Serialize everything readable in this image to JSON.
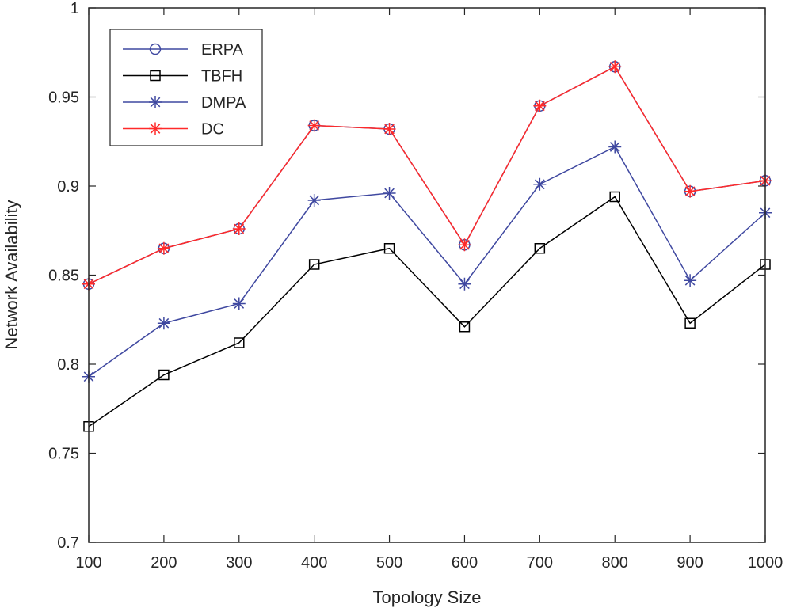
{
  "chart_data": {
    "type": "line",
    "title": "",
    "xlabel": "Topology Size",
    "ylabel": "Network Availability",
    "x": [
      100,
      200,
      300,
      400,
      500,
      600,
      700,
      800,
      900,
      1000
    ],
    "xlim": [
      100,
      1000
    ],
    "ylim": [
      0.7,
      1.0
    ],
    "xticks": [
      "100",
      "200",
      "300",
      "400",
      "500",
      "600",
      "700",
      "800",
      "900",
      "1000"
    ],
    "yticks": [
      "0.7",
      "0.75",
      "0.8",
      "0.85",
      "0.9",
      "0.95",
      "1"
    ],
    "grid": false,
    "legend_position": "top-left",
    "series": [
      {
        "name": "ERPA",
        "color": "#3f48a0",
        "marker": "circle",
        "values": [
          0.845,
          0.865,
          0.876,
          0.934,
          0.932,
          0.867,
          0.945,
          0.967,
          0.897,
          0.903
        ]
      },
      {
        "name": "TBFH",
        "color": "#000000",
        "marker": "square",
        "values": [
          0.765,
          0.794,
          0.812,
          0.856,
          0.865,
          0.821,
          0.865,
          0.894,
          0.823,
          0.856
        ]
      },
      {
        "name": "DMPA",
        "color": "#3f48a0",
        "marker": "asterisk",
        "values": [
          0.793,
          0.823,
          0.834,
          0.892,
          0.896,
          0.845,
          0.901,
          0.922,
          0.847,
          0.885
        ]
      },
      {
        "name": "DC",
        "color": "#ff2a2a",
        "marker": "asterisk",
        "values": [
          0.845,
          0.865,
          0.876,
          0.934,
          0.932,
          0.867,
          0.945,
          0.967,
          0.897,
          0.903
        ]
      }
    ]
  }
}
